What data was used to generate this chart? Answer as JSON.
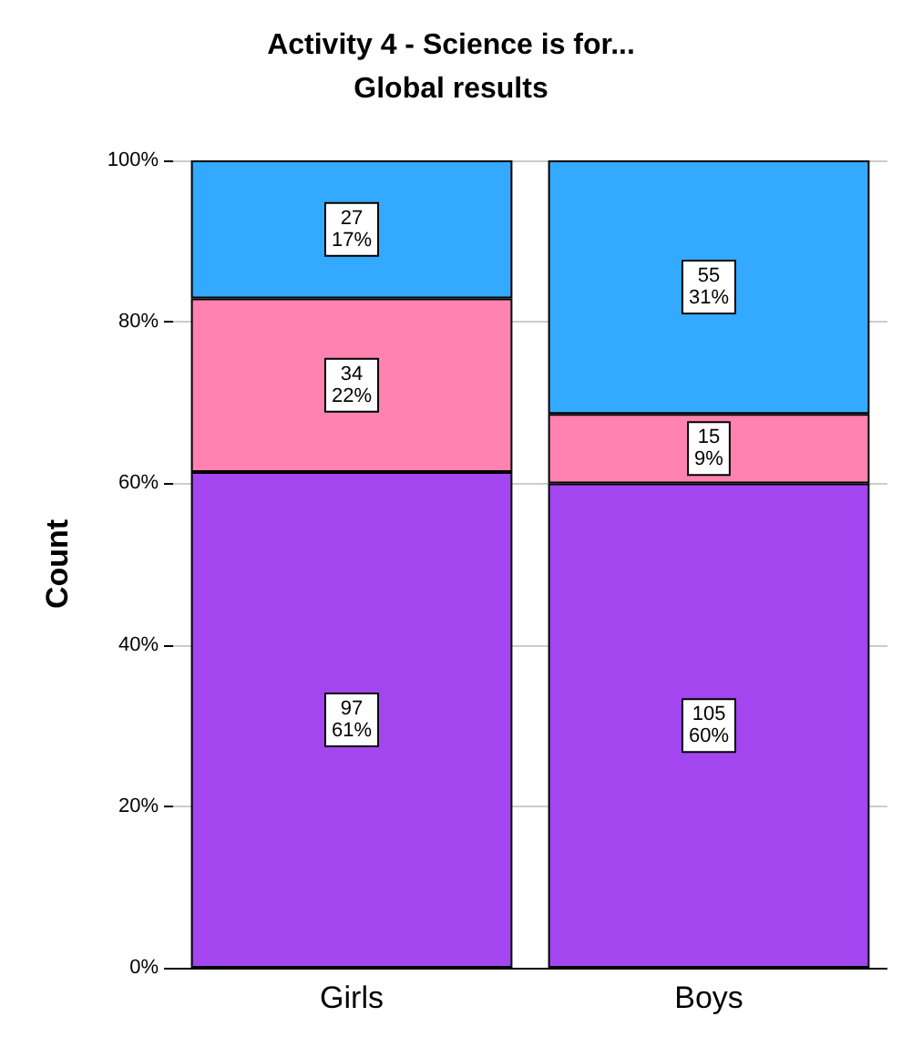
{
  "chart_data": {
    "type": "bar",
    "title": "Activity 4 - Science is for...",
    "subtitle": "Global results",
    "ylabel": "Count",
    "categories": [
      "Girls",
      "Boys"
    ],
    "stacked": true,
    "grid": "y",
    "ylim": [
      0,
      100
    ],
    "yticks": [
      {
        "value": 0,
        "label": "0%"
      },
      {
        "value": 20,
        "label": "20%"
      },
      {
        "value": 40,
        "label": "40%"
      },
      {
        "value": 60,
        "label": "60%"
      },
      {
        "value": 80,
        "label": "80%"
      },
      {
        "value": 100,
        "label": "100%"
      }
    ],
    "series": [
      {
        "color": "#a346f0",
        "values": [
          61.4,
          60.0
        ],
        "value_labels": [
          "97\n61%",
          "105\n60%"
        ]
      },
      {
        "color": "#ff82b0",
        "values": [
          21.5,
          8.6
        ],
        "value_labels": [
          "34\n22%",
          "15\n9%"
        ]
      },
      {
        "color": "#33aaff",
        "values": [
          17.1,
          31.4
        ],
        "value_labels": [
          "27\n17%",
          "55\n31%"
        ]
      }
    ]
  }
}
